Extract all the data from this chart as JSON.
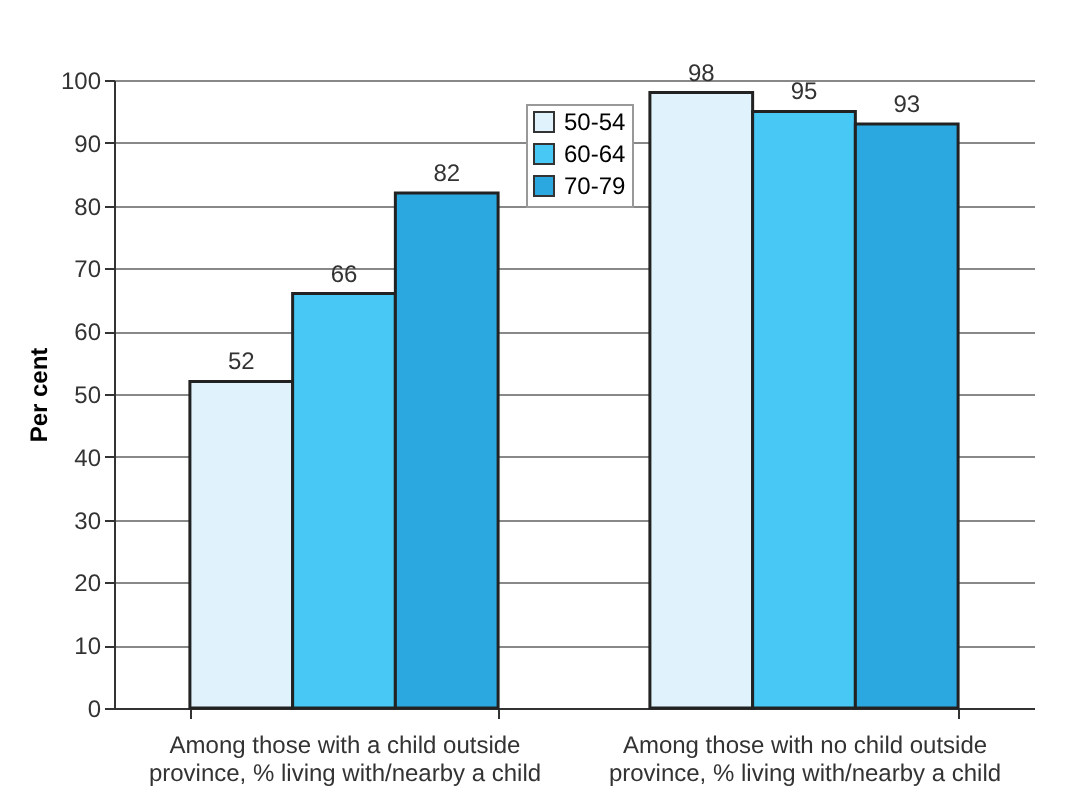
{
  "chart_data": {
    "type": "bar",
    "ylabel": "Per cent",
    "categories": [
      "Among those with a child outside province, % living with/nearby a child",
      "Among those with no child outside province, % living with/nearby a child"
    ],
    "series": [
      {
        "name": "50-54",
        "color": "#e0f2fc",
        "values": [
          52,
          98
        ]
      },
      {
        "name": "60-64",
        "color": "#48c8f4",
        "values": [
          66,
          95
        ]
      },
      {
        "name": "70-79",
        "color": "#2ca8e0",
        "values": [
          82,
          93
        ]
      }
    ],
    "ylim": [
      0,
      100
    ],
    "yticks": [
      0,
      10,
      20,
      30,
      40,
      50,
      60,
      70,
      80,
      90,
      100
    ],
    "grid": "y",
    "legend": "top",
    "data_labels": true
  }
}
